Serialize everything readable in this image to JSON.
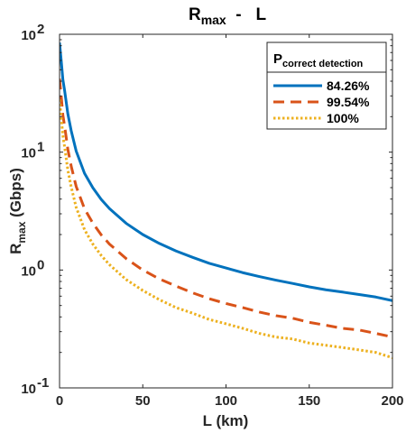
{
  "chart_data": {
    "type": "line",
    "title": {
      "main": "R",
      "sub": "max",
      "rest": "  -   L"
    },
    "xlabel": "L (km)",
    "ylabel": {
      "main": "R",
      "sub": "max",
      "rest": " (Gbps)"
    },
    "x_scale": "linear",
    "y_scale": "log",
    "xlim": [
      0,
      200
    ],
    "ylim": [
      0.1,
      100
    ],
    "x_ticks": [
      0,
      50,
      100,
      150,
      200
    ],
    "x_tick_labels": [
      "0",
      "50",
      "100",
      "150",
      "200"
    ],
    "y_ticks": [
      0.1,
      1,
      10,
      100
    ],
    "y_tick_labels": [
      {
        "base": "10",
        "exp": "-1"
      },
      {
        "base": "10",
        "exp": "0"
      },
      {
        "base": "10",
        "exp": "1"
      },
      {
        "base": "10",
        "exp": "2"
      }
    ],
    "grid": false,
    "legend": {
      "title": {
        "main": "P",
        "sub": "correct detection"
      },
      "position": "top-right"
    },
    "x": [
      0,
      1,
      2,
      3,
      5,
      7,
      10,
      15,
      20,
      25,
      30,
      40,
      50,
      60,
      70,
      80,
      90,
      100,
      110,
      120,
      130,
      140,
      150,
      160,
      170,
      180,
      190,
      200
    ],
    "series": [
      {
        "name": "84.26%",
        "color": "#0072BD",
        "style": "solid",
        "values": [
          85,
          59.65,
          41.22,
          33.64,
          21.09,
          15.19,
          10.21,
          6.61,
          4.99,
          3.98,
          3.32,
          2.49,
          2.0,
          1.68,
          1.45,
          1.28,
          1.14,
          1.04,
          0.95,
          0.88,
          0.82,
          0.77,
          0.72,
          0.68,
          0.65,
          0.62,
          0.59,
          0.55
        ]
      },
      {
        "name": "99.54%",
        "color": "#D95319",
        "style": "dashed",
        "values": [
          42,
          29.82,
          20.61,
          16.82,
          10.55,
          7.6,
          5.11,
          3.31,
          2.5,
          1.99,
          1.66,
          1.25,
          1.0,
          0.84,
          0.73,
          0.64,
          0.57,
          0.52,
          0.48,
          0.44,
          0.41,
          0.39,
          0.36,
          0.34,
          0.32,
          0.31,
          0.29,
          0.27
        ]
      },
      {
        "name": "100%",
        "color": "#EDB120",
        "style": "dotted",
        "values": [
          28,
          19.88,
          13.74,
          11.21,
          7.03,
          5.06,
          3.4,
          2.2,
          1.66,
          1.33,
          1.11,
          0.83,
          0.67,
          0.56,
          0.48,
          0.43,
          0.38,
          0.35,
          0.32,
          0.29,
          0.27,
          0.26,
          0.24,
          0.23,
          0.22,
          0.21,
          0.2,
          0.18
        ]
      }
    ]
  }
}
